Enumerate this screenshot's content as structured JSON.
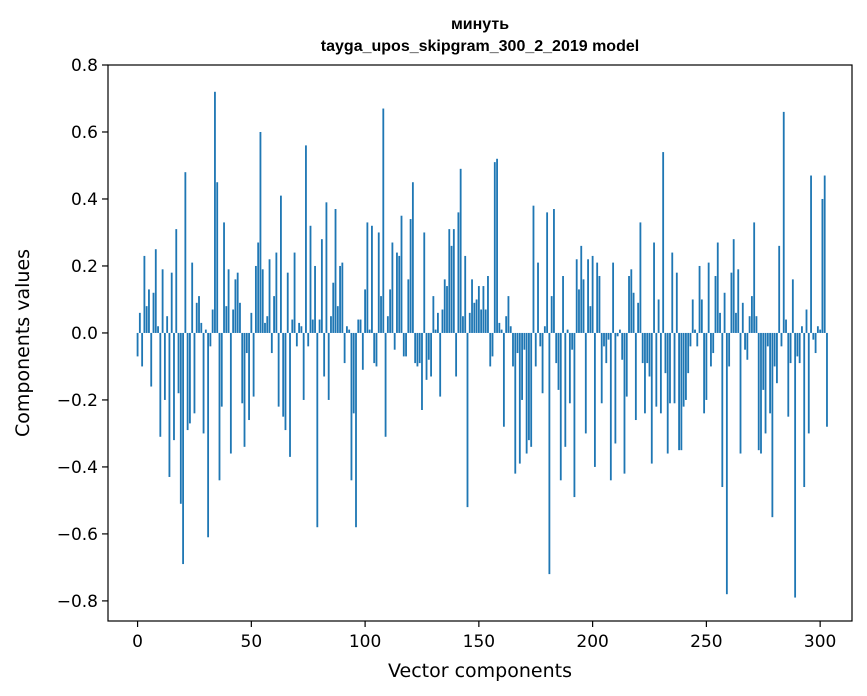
{
  "chart_data": {
    "type": "bar",
    "title": "минуть",
    "subtitle": "tayga_upos_skipgram_300_2_2019 model",
    "xlabel": "Vector components",
    "ylabel": "Components values",
    "xlim": [
      -13,
      314
    ],
    "ylim": [
      -0.86,
      0.8
    ],
    "xticks": [
      0,
      50,
      100,
      150,
      200,
      250,
      300
    ],
    "xtick_labels": [
      "0",
      "50",
      "100",
      "150",
      "200",
      "250",
      "300"
    ],
    "yticks": [
      0.8,
      0.6,
      0.4,
      0.2,
      0.0,
      -0.2,
      -0.4,
      -0.6,
      -0.8
    ],
    "ytick_labels": [
      "0.8",
      "0.6",
      "0.4",
      "0.2",
      "0.0",
      "−0.2",
      "−0.4",
      "−0.6",
      "−0.8"
    ],
    "bar_color": "#1f77b4",
    "values": [
      -0.07,
      0.06,
      -0.1,
      0.23,
      0.08,
      0.13,
      -0.16,
      0.12,
      0.25,
      0.02,
      -0.31,
      0.19,
      -0.2,
      0.05,
      -0.43,
      0.18,
      -0.32,
      0.31,
      -0.18,
      -0.51,
      -0.69,
      0.48,
      -0.29,
      -0.27,
      0.21,
      -0.24,
      0.09,
      0.11,
      0.03,
      -0.3,
      0.01,
      -0.61,
      -0.04,
      0.07,
      0.72,
      0.45,
      -0.44,
      -0.22,
      0.33,
      0.08,
      0.19,
      -0.36,
      0.07,
      0.16,
      0.18,
      0.09,
      -0.21,
      -0.34,
      -0.06,
      -0.26,
      0.06,
      -0.19,
      0.2,
      0.27,
      0.6,
      0.19,
      0.03,
      0.05,
      0.22,
      -0.06,
      0.11,
      0.24,
      -0.22,
      0.41,
      -0.25,
      -0.29,
      0.18,
      -0.37,
      0.04,
      0.24,
      -0.04,
      0.03,
      0.02,
      -0.2,
      0.56,
      -0.04,
      0.32,
      0.04,
      0.2,
      -0.58,
      0.04,
      0.28,
      -0.13,
      0.39,
      -0.2,
      0.05,
      0.15,
      0.37,
      0.08,
      0.2,
      0.21,
      -0.09,
      0.02,
      0.01,
      -0.44,
      -0.24,
      -0.58,
      0.04,
      0.04,
      -0.11,
      0.13,
      0.33,
      0.01,
      0.32,
      -0.09,
      -0.1,
      0.3,
      0.11,
      0.67,
      -0.31,
      0.05,
      0.13,
      0.27,
      -0.05,
      0.24,
      0.23,
      0.35,
      -0.07,
      -0.07,
      0.16,
      0.34,
      0.45,
      -0.09,
      -0.1,
      -0.09,
      -0.23,
      0.3,
      -0.14,
      -0.08,
      -0.13,
      0.11,
      0.01,
      0.06,
      -0.19,
      0.07,
      0.16,
      0.14,
      0.31,
      0.26,
      0.31,
      -0.13,
      0.36,
      0.49,
      0.05,
      0.23,
      -0.52,
      0.06,
      0.16,
      0.09,
      0.1,
      0.14,
      0.07,
      0.14,
      0.07,
      0.17,
      -0.1,
      -0.07,
      0.51,
      0.52,
      0.03,
      0.01,
      -0.28,
      0.05,
      0.11,
      0.02,
      -0.1,
      -0.42,
      -0.06,
      -0.39,
      -0.2,
      -0.05,
      -0.36,
      -0.32,
      -0.34,
      0.38,
      -0.1,
      0.21,
      -0.04,
      -0.18,
      0.02,
      0.36,
      -0.72,
      0.11,
      0.37,
      -0.09,
      -0.17,
      -0.44,
      0.17,
      -0.34,
      0.01,
      -0.21,
      -0.05,
      -0.49,
      0.22,
      0.13,
      0.26,
      0.16,
      -0.3,
      0.22,
      0.08,
      0.23,
      -0.4,
      0.21,
      0.17,
      -0.21,
      -0.04,
      -0.09,
      -0.02,
      -0.44,
      0.21,
      -0.33,
      -0.01,
      0.01,
      -0.08,
      -0.42,
      -0.19,
      0.17,
      0.19,
      0.12,
      -0.26,
      0.09,
      0.33,
      -0.09,
      -0.24,
      -0.09,
      -0.13,
      -0.39,
      0.27,
      -0.22,
      0.1,
      -0.24,
      0.54,
      -0.12,
      -0.36,
      -0.21,
      0.24,
      -0.21,
      0.18,
      -0.35,
      -0.35,
      -0.22,
      -0.2,
      -0.12,
      -0.04,
      0.1,
      0.01,
      -0.04,
      0.2,
      0.1,
      -0.24,
      -0.2,
      0.21,
      -0.1,
      -0.06,
      0.17,
      0.27,
      0.06,
      -0.46,
      0.12,
      -0.78,
      -0.1,
      0.18,
      0.28,
      0.06,
      0.19,
      -0.36,
      0.09,
      -0.05,
      -0.08,
      0.05,
      0.11,
      0.33,
      0.05,
      -0.35,
      -0.36,
      -0.17,
      -0.3,
      -0.04,
      -0.24,
      -0.55,
      -0.1,
      -0.15,
      0.26,
      -0.04,
      0.66,
      0.04,
      -0.25,
      -0.09,
      0.16,
      -0.79,
      -0.07,
      -0.09,
      0.02,
      -0.46,
      0.07,
      -0.3,
      0.47,
      -0.02,
      -0.06,
      0.02,
      0.01,
      0.4,
      0.47,
      -0.28
    ]
  }
}
